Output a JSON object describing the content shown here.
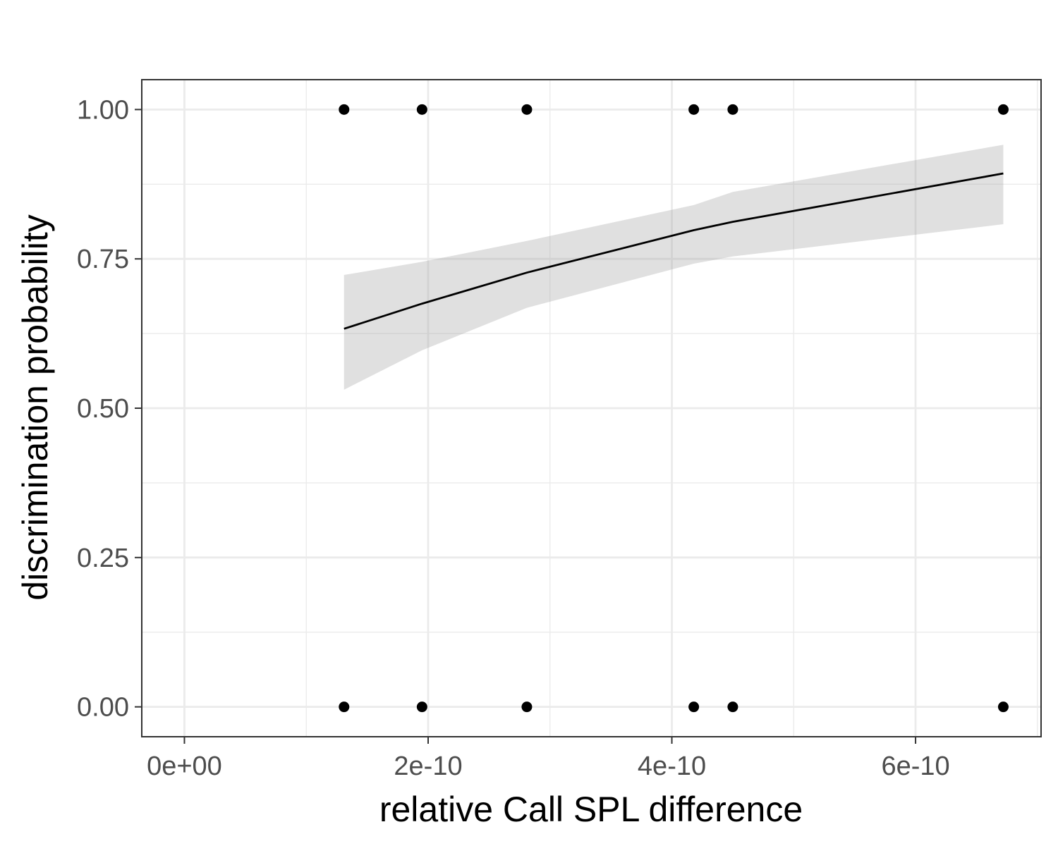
{
  "chart_data": {
    "type": "scatter",
    "title": "",
    "xlabel": "relative Call SPL difference",
    "ylabel": "discrimination probability",
    "xlim": [
      -3.5e-11,
      7.03e-10
    ],
    "ylim": [
      -0.05,
      1.05
    ],
    "x_ticks": [
      0,
      2e-10,
      4e-10,
      6e-10
    ],
    "x_tick_labels": [
      "0e+00",
      "2e-10",
      "4e-10",
      "6e-10"
    ],
    "y_ticks": [
      0,
      0.25,
      0.5,
      0.75,
      1.0
    ],
    "y_tick_labels": [
      "0.00",
      "0.25",
      "0.50",
      "0.75",
      "1.00"
    ],
    "grid": true,
    "points": [
      {
        "x": 1.31e-10,
        "y": 1
      },
      {
        "x": 1.95e-10,
        "y": 1
      },
      {
        "x": 2.81e-10,
        "y": 1
      },
      {
        "x": 4.18e-10,
        "y": 1
      },
      {
        "x": 4.5e-10,
        "y": 1
      },
      {
        "x": 6.72e-10,
        "y": 1
      },
      {
        "x": 1.31e-10,
        "y": 0
      },
      {
        "x": 1.95e-10,
        "y": 0
      },
      {
        "x": 2.81e-10,
        "y": 0
      },
      {
        "x": 4.18e-10,
        "y": 0
      },
      {
        "x": 4.5e-10,
        "y": 0
      },
      {
        "x": 6.72e-10,
        "y": 0
      }
    ],
    "fit": {
      "x": [
        1.31e-10,
        1.95e-10,
        2.81e-10,
        4.18e-10,
        4.5e-10,
        6.72e-10
      ],
      "y": [
        0.633,
        0.675,
        0.727,
        0.798,
        0.812,
        0.893
      ],
      "lower": [
        0.531,
        0.597,
        0.668,
        0.742,
        0.754,
        0.808
      ],
      "upper": [
        0.723,
        0.745,
        0.78,
        0.84,
        0.862,
        0.941
      ]
    },
    "colors": {
      "points": "#000000",
      "line": "#000000",
      "ribbon": "#999999",
      "grid": "#ebebeb",
      "panel_border": "#333333"
    }
  }
}
